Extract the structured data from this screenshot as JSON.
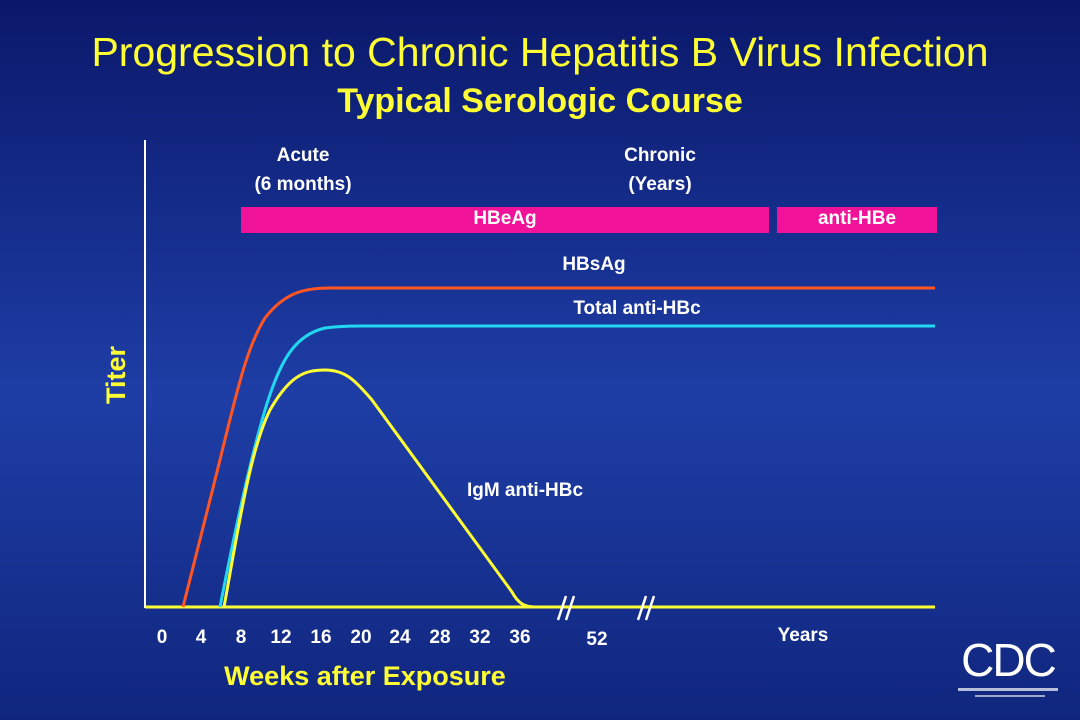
{
  "title": "Progression to Chronic Hepatitis B Virus Infection",
  "subtitle": "Typical Serologic Course",
  "phases": [
    {
      "label": "Acute",
      "sublabel": "(6 months)"
    },
    {
      "label": "Chronic",
      "sublabel": "(Years)"
    }
  ],
  "bars": [
    {
      "label": "HBeAg"
    },
    {
      "label": "anti-HBe"
    }
  ],
  "curves": [
    {
      "label": "HBsAg"
    },
    {
      "label": "Total anti-HBc"
    },
    {
      "label": "IgM anti-HBc"
    }
  ],
  "y_axis": {
    "title": "Titer"
  },
  "x_axis": {
    "title": "Weeks after Exposure",
    "ticks": [
      "0",
      "4",
      "8",
      "12",
      "16",
      "20",
      "24",
      "28",
      "32",
      "36",
      "52",
      "Years"
    ]
  },
  "logo": "CDC"
}
